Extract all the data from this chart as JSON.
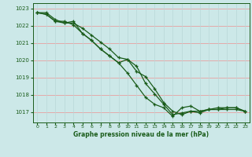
{
  "title": "Graphe pression niveau de la mer (hPa)",
  "bg_color": "#cce8e8",
  "grid_color_h": "#e8a0a0",
  "grid_color_v": "#b8d8d8",
  "line_color": "#1a5c1a",
  "xlim": [
    -0.5,
    23.5
  ],
  "ylim": [
    1016.4,
    1023.3
  ],
  "yticks": [
    1017,
    1018,
    1019,
    1020,
    1021,
    1022,
    1023
  ],
  "xticks": [
    0,
    1,
    2,
    3,
    4,
    5,
    6,
    7,
    8,
    9,
    10,
    11,
    12,
    13,
    14,
    15,
    16,
    17,
    18,
    19,
    20,
    21,
    22,
    23
  ],
  "series": [
    [
      1022.75,
      1022.75,
      1022.35,
      1022.15,
      1022.15,
      1021.85,
      1021.45,
      1021.05,
      1020.65,
      1020.15,
      1020.05,
      1019.35,
      1019.05,
      1018.35,
      1017.55,
      1017.05,
      1016.85,
      1017.05,
      1017.05,
      1017.15,
      1017.15,
      1017.15,
      1017.15,
      1017.05
    ],
    [
      1022.75,
      1022.65,
      1022.25,
      1022.15,
      1022.25,
      1021.55,
      1021.15,
      1020.65,
      1020.25,
      1019.85,
      1019.25,
      1018.55,
      1017.85,
      1017.45,
      1017.25,
      1016.75,
      1017.25,
      1017.35,
      1017.05,
      1017.15,
      1017.25,
      1017.25,
      1017.25,
      1017.05
    ],
    [
      1022.75,
      1022.65,
      1022.25,
      1022.25,
      1022.05,
      1021.55,
      1021.15,
      1020.65,
      1020.25,
      1019.85,
      1020.05,
      1019.65,
      1018.65,
      1018.05,
      1017.45,
      1016.85,
      1016.95,
      1017.05,
      1016.95,
      1017.15,
      1017.15,
      1017.25,
      1017.25,
      1017.05
    ]
  ]
}
